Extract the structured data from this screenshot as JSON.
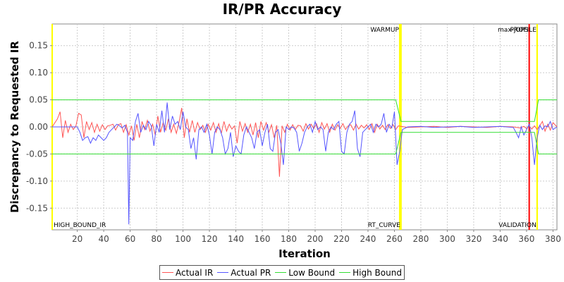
{
  "title": "IR/PR Accuracy",
  "legend": {
    "items": [
      {
        "label": "Actual IR",
        "color": "#ff5555"
      },
      {
        "label": "Actual PR",
        "color": "#5555ff"
      },
      {
        "label": "Low Bound",
        "color": "#33dd33"
      },
      {
        "label": "High Bound",
        "color": "#33dd33"
      }
    ]
  },
  "chart_data": {
    "type": "line",
    "title": "IR/PR Accuracy",
    "xlabel": "Iteration",
    "ylabel": "Discrepancy to Requested IR",
    "xlim": [
      1,
      383
    ],
    "ylim": [
      -0.19,
      0.19
    ],
    "x_ticks": [
      20,
      40,
      60,
      80,
      100,
      120,
      140,
      160,
      180,
      200,
      220,
      240,
      260,
      280,
      300,
      320,
      340,
      360,
      380
    ],
    "y_ticks": [
      -0.15,
      -0.1,
      -0.05,
      0.0,
      0.05,
      0.1,
      0.15
    ],
    "y_tick_labels": [
      "-0.15",
      "-0.10",
      "-0.05",
      "0.00",
      "0.05",
      "0.10",
      "0.15"
    ],
    "grid": true,
    "legend_position": "bottom",
    "markers": [
      {
        "x": 264,
        "color": "#ffff00",
        "label": "WARMUP",
        "label_pos": "top"
      },
      {
        "x": 265,
        "color": "#ffff00",
        "label": "RT_CURVE",
        "label_pos": "bottom"
      },
      {
        "x": 362,
        "color": "#ff0000",
        "label": "max-jOPS",
        "label_pos": "top"
      },
      {
        "x": 368,
        "color": "#ffff00",
        "label": "PROFILE",
        "label_pos": "top"
      },
      {
        "x": 368,
        "color": "#ffff00",
        "label": "VALIDATION",
        "label_pos": "bottom"
      },
      {
        "x": 1,
        "color": "#ffff00",
        "label": "HIGH_BOUND_IR",
        "label_pos": "bottom"
      }
    ],
    "series": [
      {
        "name": "Actual IR",
        "color": "#ff5555",
        "x": [
          1,
          5,
          7,
          9,
          11,
          13,
          15,
          17,
          19,
          21,
          23,
          25,
          27,
          29,
          31,
          33,
          35,
          37,
          39,
          41,
          43,
          45,
          47,
          49,
          51,
          53,
          55,
          57,
          59,
          61,
          63,
          65,
          67,
          69,
          71,
          73,
          75,
          77,
          79,
          81,
          83,
          85,
          87,
          89,
          91,
          93,
          95,
          97,
          99,
          101,
          103,
          105,
          107,
          109,
          111,
          113,
          115,
          117,
          119,
          121,
          123,
          125,
          127,
          129,
          131,
          133,
          135,
          137,
          139,
          141,
          143,
          145,
          147,
          149,
          151,
          153,
          155,
          157,
          159,
          161,
          163,
          165,
          167,
          169,
          171,
          173,
          175,
          177,
          179,
          181,
          183,
          185,
          187,
          189,
          191,
          193,
          195,
          197,
          199,
          201,
          203,
          205,
          207,
          209,
          211,
          213,
          215,
          217,
          219,
          221,
          223,
          225,
          227,
          229,
          231,
          233,
          235,
          237,
          239,
          241,
          243,
          245,
          247,
          249,
          251,
          253,
          255,
          257,
          259,
          261,
          263,
          265,
          270,
          280,
          290,
          300,
          310,
          320,
          330,
          340,
          350,
          355,
          358,
          360,
          362,
          364,
          366,
          368,
          370,
          372,
          374,
          376,
          378,
          380,
          383
        ],
        "y": [
          0.0,
          0.015,
          0.028,
          -0.02,
          0.012,
          -0.01,
          0.005,
          -0.005,
          0.002,
          0.025,
          0.022,
          -0.02,
          0.01,
          -0.005,
          0.008,
          -0.01,
          0.005,
          -0.008,
          0.004,
          -0.005,
          0.002,
          0.003,
          0.005,
          -0.006,
          0.004,
          0.006,
          -0.01,
          0.004,
          -0.015,
          0.002,
          -0.025,
          0.005,
          -0.02,
          0.01,
          -0.005,
          0.012,
          -0.008,
          0.005,
          -0.015,
          0.02,
          -0.01,
          0.008,
          -0.006,
          0.015,
          -0.01,
          0.005,
          -0.012,
          0.008,
          0.035,
          -0.02,
          0.015,
          -0.01,
          0.012,
          -0.01,
          0.008,
          -0.005,
          0.003,
          -0.01,
          0.005,
          -0.006,
          0.008,
          -0.01,
          0.006,
          -0.012,
          0.01,
          -0.008,
          0.005,
          -0.004,
          0.002,
          -0.03,
          0.01,
          -0.008,
          0.006,
          -0.01,
          0.005,
          -0.015,
          0.008,
          -0.02,
          0.01,
          -0.006,
          0.008,
          -0.01,
          0.004,
          -0.02,
          0.003,
          -0.092,
          0.002,
          -0.01,
          0.005,
          -0.006,
          0.004,
          -0.005,
          0.003,
          0.002,
          -0.008,
          0.006,
          -0.004,
          0.005,
          -0.003,
          0.006,
          -0.01,
          0.008,
          -0.004,
          0.006,
          -0.01,
          0.005,
          -0.006,
          0.004,
          -0.003,
          0.006,
          -0.005,
          0.002,
          0.004,
          -0.006,
          0.005,
          -0.004,
          0.003,
          -0.002,
          0.004,
          -0.005,
          0.006,
          -0.01,
          0.005,
          -0.004,
          0.003,
          -0.005,
          0.004,
          -0.003,
          0.004,
          -0.005,
          0.002,
          0.001,
          -0.001,
          0.0,
          0.001,
          -0.001,
          0.001,
          0.0,
          -0.001,
          0.001,
          0.0,
          -0.002,
          0.001,
          -0.003,
          0.002,
          -0.004,
          0.002,
          -0.005,
          0.002,
          0.01,
          -0.008,
          0.005,
          -0.006,
          0.008,
          0.0
        ]
      },
      {
        "name": "Actual PR",
        "color": "#5555ff",
        "x": [
          1,
          20,
          22,
          24,
          26,
          28,
          30,
          32,
          34,
          36,
          38,
          40,
          42,
          44,
          46,
          48,
          50,
          52,
          54,
          56,
          58,
          59,
          60,
          62,
          64,
          66,
          68,
          70,
          72,
          74,
          76,
          78,
          80,
          82,
          84,
          86,
          88,
          90,
          92,
          94,
          96,
          98,
          100,
          102,
          104,
          106,
          108,
          110,
          112,
          114,
          116,
          118,
          120,
          122,
          124,
          126,
          128,
          130,
          132,
          134,
          136,
          138,
          140,
          142,
          144,
          146,
          148,
          150,
          152,
          154,
          156,
          158,
          160,
          162,
          164,
          166,
          168,
          170,
          172,
          174,
          176,
          178,
          180,
          182,
          184,
          186,
          188,
          190,
          192,
          194,
          196,
          198,
          200,
          202,
          204,
          206,
          208,
          210,
          212,
          214,
          216,
          218,
          220,
          222,
          224,
          226,
          228,
          230,
          232,
          234,
          236,
          238,
          240,
          242,
          244,
          246,
          248,
          250,
          252,
          254,
          256,
          258,
          260,
          262,
          264,
          266,
          270,
          280,
          290,
          300,
          310,
          320,
          330,
          340,
          350,
          352,
          354,
          356,
          358,
          360,
          362,
          364,
          366,
          368,
          370,
          372,
          374,
          376,
          378,
          380,
          383
        ],
        "y": [
          0.0,
          0.0,
          -0.01,
          -0.025,
          -0.02,
          -0.018,
          -0.03,
          -0.02,
          -0.025,
          -0.015,
          -0.02,
          -0.025,
          -0.02,
          -0.01,
          -0.005,
          0.0,
          0.005,
          0.002,
          -0.002,
          0.003,
          -0.01,
          -0.18,
          -0.02,
          -0.025,
          0.01,
          0.025,
          -0.01,
          0.003,
          -0.005,
          0.01,
          0.002,
          -0.035,
          0.005,
          -0.01,
          0.03,
          -0.01,
          0.045,
          -0.005,
          0.02,
          0.005,
          0.01,
          -0.005,
          0.028,
          0.0,
          -0.005,
          -0.04,
          -0.02,
          -0.06,
          -0.005,
          0.0,
          -0.01,
          0.005,
          -0.015,
          -0.05,
          -0.01,
          0.0,
          -0.005,
          -0.02,
          -0.05,
          -0.04,
          -0.01,
          -0.055,
          -0.035,
          -0.045,
          -0.05,
          -0.015,
          0.0,
          -0.01,
          -0.02,
          -0.04,
          -0.01,
          -0.005,
          -0.035,
          -0.01,
          0.005,
          -0.04,
          -0.045,
          -0.01,
          -0.005,
          -0.03,
          -0.07,
          0.0,
          -0.005,
          0.0,
          -0.002,
          -0.01,
          -0.045,
          -0.03,
          -0.01,
          0.0,
          0.005,
          -0.01,
          0.01,
          -0.005,
          0.0,
          -0.005,
          -0.045,
          -0.01,
          0.0,
          -0.005,
          0.005,
          0.01,
          -0.045,
          -0.05,
          -0.01,
          0.005,
          0.01,
          0.03,
          -0.04,
          -0.055,
          -0.01,
          -0.005,
          0.0,
          0.005,
          -0.01,
          0.005,
          0.0,
          0.005,
          0.025,
          -0.01,
          0.005,
          -0.002,
          0.028,
          -0.07,
          -0.045,
          -0.005,
          0.0,
          0.001,
          -0.001,
          0.0,
          0.001,
          -0.001,
          0.0,
          0.001,
          -0.001,
          -0.01,
          -0.02,
          0.0,
          -0.015,
          -0.005,
          0.005,
          -0.02,
          -0.07,
          -0.02,
          0.003,
          -0.005,
          0.002,
          0.0,
          0.01,
          -0.005,
          0.0
        ]
      },
      {
        "name": "Low Bound",
        "color": "#33dd33",
        "x": [
          1,
          261,
          265,
          362,
          366,
          369,
          383
        ],
        "y": [
          -0.05,
          -0.05,
          -0.01,
          -0.01,
          -0.01,
          -0.05,
          -0.05
        ]
      },
      {
        "name": "High Bound",
        "color": "#33dd33",
        "x": [
          1,
          261,
          265,
          362,
          366,
          369,
          383
        ],
        "y": [
          0.05,
          0.05,
          0.01,
          0.01,
          0.01,
          0.05,
          0.05
        ]
      }
    ]
  }
}
